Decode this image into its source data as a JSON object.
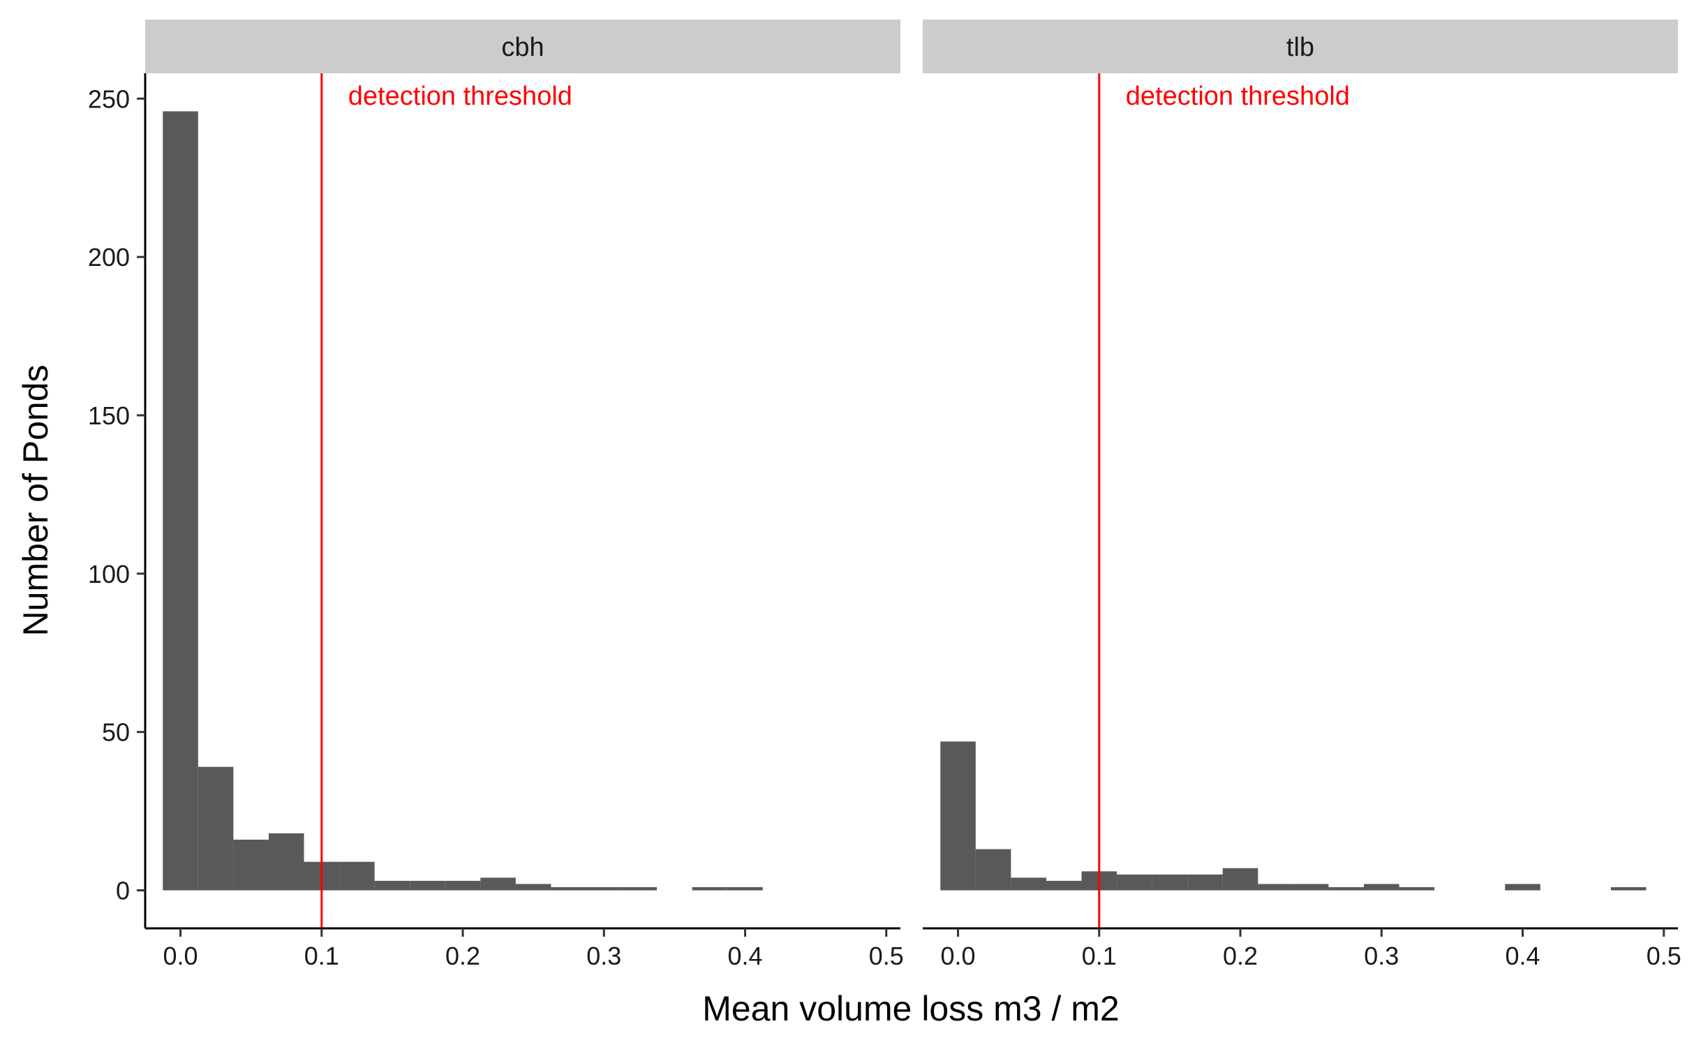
{
  "chart_data": {
    "type": "bar",
    "subtype": "faceted-histogram",
    "xlabel": "Mean volume loss m3 / m2",
    "ylabel": "Number of Ponds",
    "xlim": [
      -0.025,
      0.51
    ],
    "ylim": [
      -12,
      258
    ],
    "x_ticks": [
      0.0,
      0.1,
      0.2,
      0.3,
      0.4,
      0.5
    ],
    "x_tick_labels": [
      "0.0",
      "0.1",
      "0.2",
      "0.3",
      "0.4",
      "0.5"
    ],
    "y_ticks": [
      0,
      50,
      100,
      150,
      200,
      250
    ],
    "y_tick_labels": [
      "0",
      "50",
      "100",
      "150",
      "200",
      "250"
    ],
    "bin_width": 0.025,
    "bar_color": "#595959",
    "grid": false,
    "legend": "none",
    "reference_line": {
      "x": 0.1,
      "color": "#ff0000",
      "label": "detection threshold"
    },
    "panels": [
      {
        "strip_label": "cbh",
        "bin_centers": [
          0.0,
          0.025,
          0.05,
          0.075,
          0.1,
          0.125,
          0.15,
          0.175,
          0.2,
          0.225,
          0.25,
          0.275,
          0.3,
          0.325,
          0.35,
          0.375,
          0.4
        ],
        "counts": [
          246,
          39,
          16,
          18,
          9,
          9,
          3,
          3,
          3,
          4,
          2,
          1,
          1,
          1,
          0,
          1,
          1
        ]
      },
      {
        "strip_label": "tlb",
        "bin_centers": [
          0.0,
          0.025,
          0.05,
          0.075,
          0.1,
          0.125,
          0.15,
          0.175,
          0.2,
          0.225,
          0.25,
          0.275,
          0.3,
          0.325,
          0.35,
          0.375,
          0.4,
          0.425,
          0.45,
          0.475
        ],
        "counts": [
          47,
          13,
          4,
          3,
          6,
          5,
          5,
          5,
          7,
          2,
          2,
          1,
          2,
          1,
          0,
          0,
          2,
          0,
          0,
          1
        ]
      }
    ]
  }
}
